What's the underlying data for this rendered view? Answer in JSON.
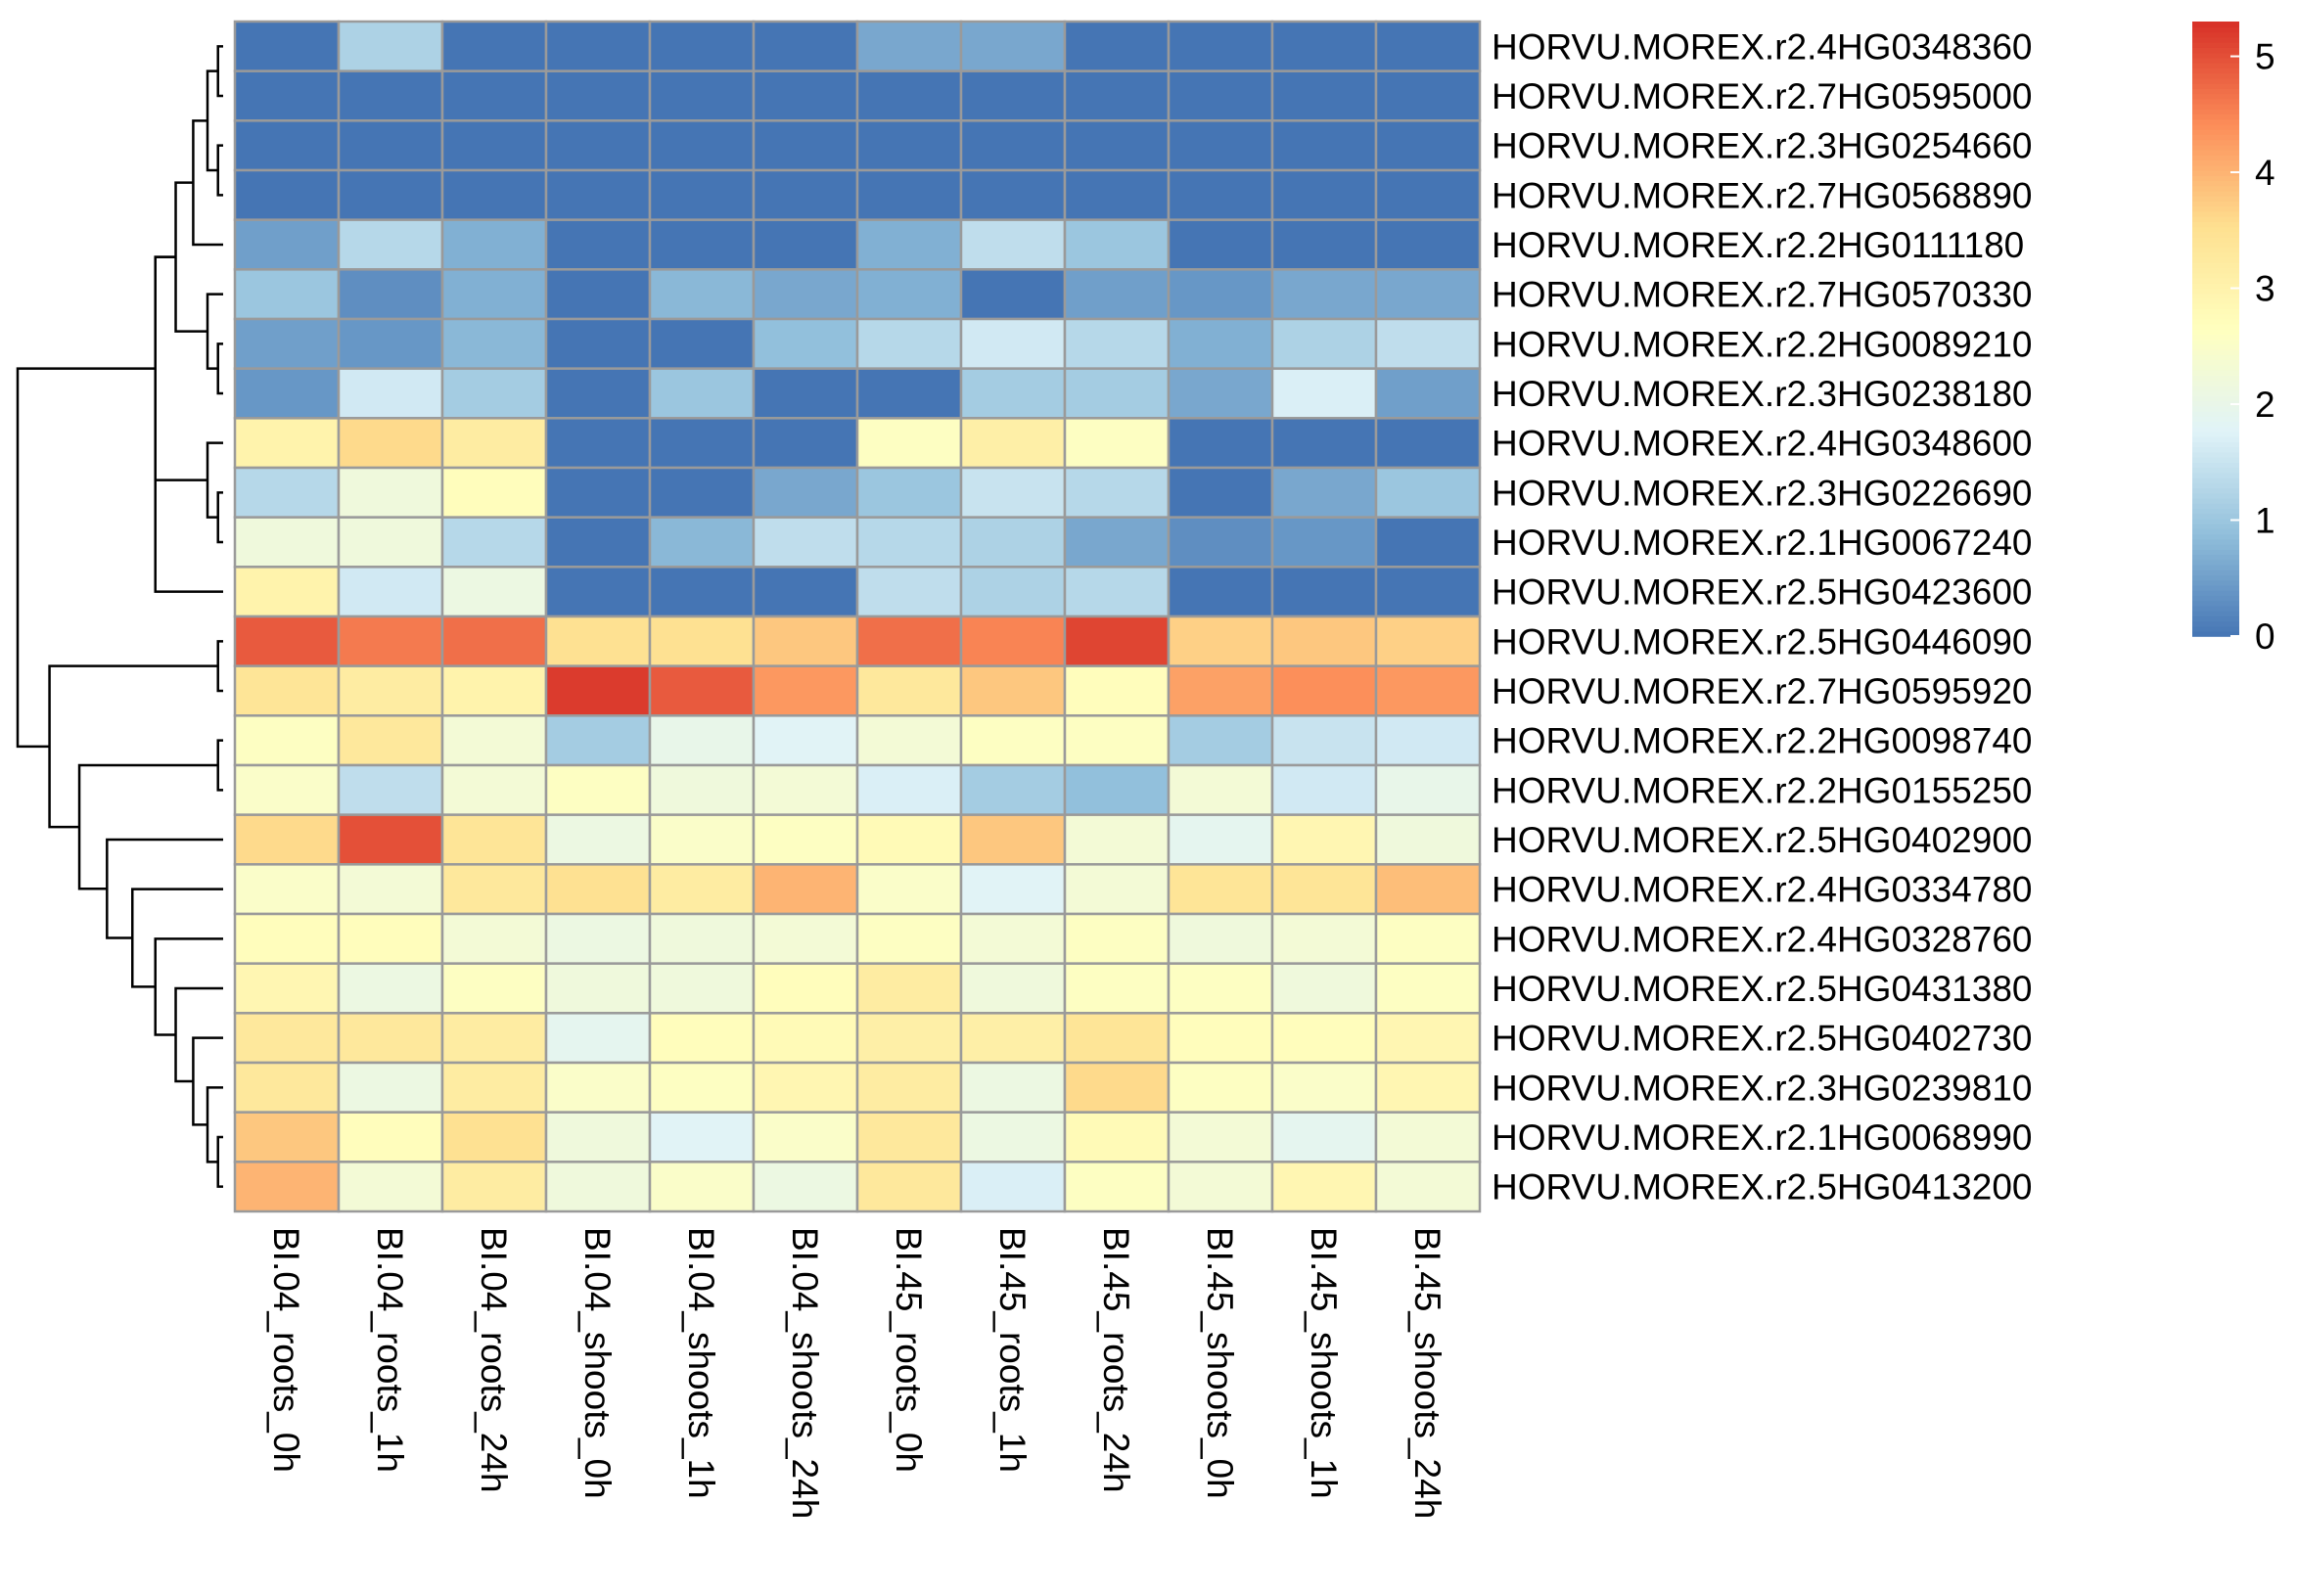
{
  "chart_data": {
    "type": "heatmap",
    "title": "",
    "xlabel": "",
    "ylabel": "",
    "columns": [
      "BI.04_roots_0h",
      "BI.04_roots_1h",
      "BI.04_roots_24h",
      "BI.04_shoots_0h",
      "BI.04_shoots_1h",
      "BI.04_shoots_24h",
      "BI.45_roots_0h",
      "BI.45_roots_1h",
      "BI.45_roots_24h",
      "BI.45_shoots_0h",
      "BI.45_shoots_1h",
      "BI.45_shoots_24h"
    ],
    "rows": [
      "HORVU.MOREX.r2.4HG0348360",
      "HORVU.MOREX.r2.7HG0595000",
      "HORVU.MOREX.r2.3HG0254660",
      "HORVU.MOREX.r2.7HG0568890",
      "HORVU.MOREX.r2.2HG0111180",
      "HORVU.MOREX.r2.7HG0570330",
      "HORVU.MOREX.r2.2HG0089210",
      "HORVU.MOREX.r2.3HG0238180",
      "HORVU.MOREX.r2.4HG0348600",
      "HORVU.MOREX.r2.3HG0226690",
      "HORVU.MOREX.r2.1HG0067240",
      "HORVU.MOREX.r2.5HG0423600",
      "HORVU.MOREX.r2.5HG0446090",
      "HORVU.MOREX.r2.7HG0595920",
      "HORVU.MOREX.r2.2HG0098740",
      "HORVU.MOREX.r2.2HG0155250",
      "HORVU.MOREX.r2.5HG0402900",
      "HORVU.MOREX.r2.4HG0334780",
      "HORVU.MOREX.r2.4HG0328760",
      "HORVU.MOREX.r2.5HG0431380",
      "HORVU.MOREX.r2.5HG0402730",
      "HORVU.MOREX.r2.3HG0239810",
      "HORVU.MOREX.r2.1HG0068990",
      "HORVU.MOREX.r2.5HG0413200"
    ],
    "values": [
      [
        0.0,
        1.2,
        0.0,
        0.0,
        0.0,
        0.0,
        0.6,
        0.6,
        0.0,
        0.0,
        0.0,
        0.0
      ],
      [
        0.0,
        0.0,
        0.0,
        0.0,
        0.0,
        0.0,
        0.0,
        0.0,
        0.0,
        0.0,
        0.0,
        0.0
      ],
      [
        0.0,
        0.0,
        0.0,
        0.0,
        0.0,
        0.0,
        0.0,
        0.0,
        0.0,
        0.0,
        0.0,
        0.0
      ],
      [
        0.0,
        0.0,
        0.0,
        0.0,
        0.0,
        0.0,
        0.0,
        0.0,
        0.0,
        0.0,
        0.0,
        0.0
      ],
      [
        0.5,
        1.3,
        0.7,
        0.0,
        0.0,
        0.0,
        0.7,
        1.4,
        1.0,
        0.0,
        0.0,
        0.0
      ],
      [
        1.0,
        0.3,
        0.7,
        0.0,
        0.8,
        0.6,
        0.7,
        0.0,
        0.5,
        0.4,
        0.6,
        0.6
      ],
      [
        0.5,
        0.4,
        0.8,
        0.0,
        0.0,
        0.9,
        1.3,
        1.6,
        1.3,
        0.7,
        1.2,
        1.4
      ],
      [
        0.4,
        1.6,
        1.1,
        0.0,
        1.0,
        0.0,
        0.0,
        1.1,
        1.1,
        0.6,
        1.7,
        0.5
      ],
      [
        3.0,
        3.6,
        3.2,
        0.0,
        0.0,
        0.0,
        2.6,
        3.1,
        2.6,
        0.0,
        0.0,
        0.0
      ],
      [
        1.3,
        2.2,
        2.7,
        0.0,
        0.0,
        0.6,
        1.0,
        1.5,
        1.3,
        0.0,
        0.6,
        1.0
      ],
      [
        2.2,
        2.2,
        1.3,
        0.0,
        0.8,
        1.4,
        1.3,
        1.2,
        0.6,
        0.3,
        0.4,
        0.0
      ],
      [
        3.0,
        1.6,
        2.1,
        0.0,
        0.0,
        0.0,
        1.4,
        1.2,
        1.3,
        0.0,
        0.0,
        0.0
      ],
      [
        4.9,
        4.6,
        4.7,
        3.5,
        3.5,
        3.8,
        4.7,
        4.5,
        5.1,
        3.7,
        3.8,
        3.7
      ],
      [
        3.4,
        3.2,
        3.0,
        5.2,
        4.9,
        4.3,
        3.3,
        3.8,
        2.7,
        4.2,
        4.4,
        4.3
      ],
      [
        2.6,
        3.3,
        2.3,
        1.1,
        2.0,
        1.8,
        2.3,
        2.6,
        2.6,
        1.1,
        1.5,
        1.6
      ],
      [
        2.5,
        1.4,
        2.3,
        2.6,
        2.2,
        2.3,
        1.7,
        1.1,
        0.9,
        2.3,
        1.6,
        2.0
      ],
      [
        3.6,
        5.0,
        3.4,
        2.1,
        2.5,
        2.6,
        2.8,
        3.8,
        2.3,
        1.9,
        2.9,
        2.2
      ],
      [
        2.5,
        2.3,
        3.3,
        3.5,
        3.2,
        4.0,
        2.5,
        1.8,
        2.3,
        3.4,
        3.4,
        3.9
      ],
      [
        2.7,
        2.7,
        2.3,
        2.1,
        2.2,
        2.3,
        2.6,
        2.3,
        2.6,
        2.2,
        2.3,
        2.6
      ],
      [
        2.9,
        2.1,
        2.6,
        2.2,
        2.2,
        2.7,
        3.2,
        2.2,
        2.6,
        2.6,
        2.2,
        2.6
      ],
      [
        3.3,
        3.3,
        3.2,
        1.9,
        2.7,
        2.8,
        3.1,
        3.1,
        3.4,
        2.7,
        2.7,
        2.9
      ],
      [
        3.3,
        2.1,
        3.2,
        2.5,
        2.6,
        2.9,
        3.2,
        2.1,
        3.6,
        2.6,
        2.5,
        2.9
      ],
      [
        3.8,
        2.7,
        3.5,
        2.2,
        1.8,
        2.5,
        3.3,
        2.1,
        2.8,
        2.3,
        1.9,
        2.3
      ],
      [
        4.0,
        2.3,
        3.2,
        2.2,
        2.5,
        2.1,
        3.3,
        1.7,
        2.6,
        2.3,
        2.9,
        2.3
      ]
    ],
    "colorbar": {
      "ticks": [
        0,
        1,
        2,
        3,
        4,
        5
      ],
      "range": [
        0,
        5.3
      ],
      "colors": [
        "#4575b4",
        "#91bfdb",
        "#e0f3f8",
        "#ffffbf",
        "#fee090",
        "#fc8d59",
        "#d73027"
      ]
    },
    "row_dendrogram": [
      [
        0,
        1
      ],
      [
        2,
        3
      ],
      [
        24,
        25
      ],
      [
        26,
        4
      ],
      [
        6,
        7
      ],
      [
        5,
        28
      ],
      [
        27,
        29
      ],
      [
        9,
        10
      ],
      [
        30,
        11
      ],
      [
        8,
        31
      ],
      [
        30,
        33
      ],
      [
        14,
        15
      ],
      [
        12,
        13
      ],
      [
        22,
        23
      ],
      [
        21,
        37
      ],
      [
        20,
        38
      ],
      [
        19,
        39
      ],
      [
        18,
        40
      ],
      [
        17,
        41
      ],
      [
        16,
        42
      ],
      [
        35,
        43
      ],
      [
        36,
        44
      ],
      [
        34,
        45
      ]
    ]
  }
}
